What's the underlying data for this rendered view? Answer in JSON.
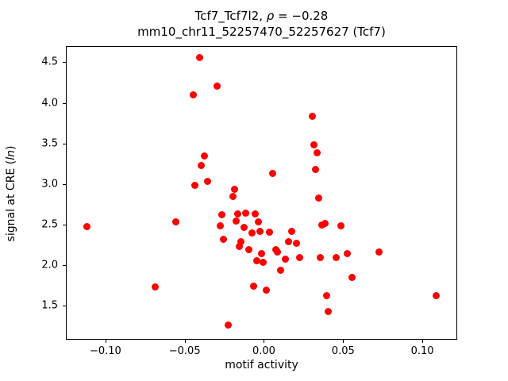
{
  "title": {
    "prefix": "Tcf7_Tcf7l2, ",
    "rho": "ρ",
    "rest": " = −0.28",
    "line2": "mm10_chr11_52257470_52257627 (Tcf7)"
  },
  "axes": {
    "xlabel": "motif activity",
    "ylabel_prefix": "signal at CRE (",
    "ylabel_italic": "ln",
    "ylabel_suffix": ")"
  },
  "chart_data": {
    "type": "scatter",
    "title": "Tcf7_Tcf7l2, ρ = −0.28",
    "subtitle": "mm10_chr11_52257470_52257627 (Tcf7)",
    "xlabel": "motif activity",
    "ylabel": "signal at CRE (ln)",
    "marker_color": "#ff0000",
    "marker_size_px": 9,
    "grid": false,
    "xlim": [
      -0.125,
      0.122
    ],
    "ylim": [
      1.08,
      4.7
    ],
    "xticks": [
      -0.1,
      -0.05,
      0.0,
      0.05,
      0.1
    ],
    "yticks": [
      1.5,
      2.0,
      2.5,
      3.0,
      3.5,
      4.0,
      4.5
    ],
    "points": [
      [
        -0.112,
        2.48
      ],
      [
        -0.069,
        1.74
      ],
      [
        -0.056,
        2.54
      ],
      [
        -0.045,
        4.11
      ],
      [
        -0.044,
        2.99
      ],
      [
        -0.041,
        4.57
      ],
      [
        -0.04,
        3.24
      ],
      [
        -0.038,
        3.35
      ],
      [
        -0.036,
        3.04
      ],
      [
        -0.03,
        4.22
      ],
      [
        -0.028,
        2.49
      ],
      [
        -0.027,
        2.63
      ],
      [
        -0.026,
        2.33
      ],
      [
        -0.023,
        1.27
      ],
      [
        -0.02,
        2.86
      ],
      [
        -0.019,
        2.94
      ],
      [
        -0.018,
        2.55
      ],
      [
        -0.017,
        2.64
      ],
      [
        -0.016,
        2.24
      ],
      [
        -0.015,
        2.3
      ],
      [
        -0.013,
        2.47
      ],
      [
        -0.012,
        2.65
      ],
      [
        -0.01,
        2.2
      ],
      [
        -0.008,
        2.41
      ],
      [
        -0.007,
        1.75
      ],
      [
        -0.006,
        2.64
      ],
      [
        -0.005,
        2.06
      ],
      [
        -0.004,
        2.54
      ],
      [
        -0.003,
        2.43
      ],
      [
        -0.002,
        2.15
      ],
      [
        -0.001,
        2.04
      ],
      [
        0.001,
        1.7
      ],
      [
        0.003,
        2.42
      ],
      [
        0.005,
        3.14
      ],
      [
        0.007,
        2.2
      ],
      [
        0.008,
        2.17
      ],
      [
        0.01,
        1.95
      ],
      [
        0.013,
        2.08
      ],
      [
        0.015,
        2.3
      ],
      [
        0.017,
        2.43
      ],
      [
        0.02,
        2.28
      ],
      [
        0.022,
        2.1
      ],
      [
        0.03,
        3.84
      ],
      [
        0.031,
        3.49
      ],
      [
        0.032,
        3.19
      ],
      [
        0.033,
        3.39
      ],
      [
        0.034,
        2.84
      ],
      [
        0.035,
        2.1
      ],
      [
        0.036,
        2.5
      ],
      [
        0.038,
        2.52
      ],
      [
        0.039,
        1.63
      ],
      [
        0.04,
        1.44
      ],
      [
        0.045,
        2.1
      ],
      [
        0.048,
        2.49
      ],
      [
        0.052,
        2.15
      ],
      [
        0.055,
        1.86
      ],
      [
        0.072,
        2.17
      ],
      [
        0.108,
        1.63
      ]
    ]
  }
}
